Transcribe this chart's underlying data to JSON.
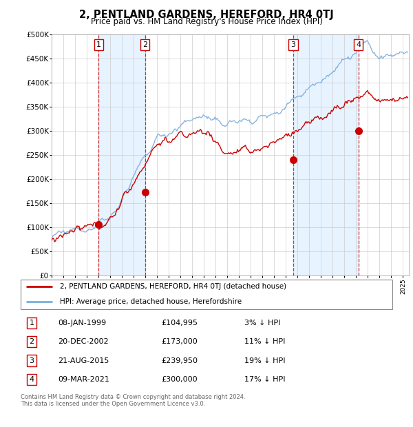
{
  "title": "2, PENTLAND GARDENS, HEREFORD, HR4 0TJ",
  "subtitle": "Price paid vs. HM Land Registry's House Price Index (HPI)",
  "sale_dates": [
    "1999-01-08",
    "2002-12-20",
    "2015-08-21",
    "2021-03-09"
  ],
  "sale_prices": [
    104995,
    173000,
    239950,
    300000
  ],
  "sale_labels": [
    "1",
    "2",
    "3",
    "4"
  ],
  "legend_house": "2, PENTLAND GARDENS, HEREFORD, HR4 0TJ (detached house)",
  "legend_hpi": "HPI: Average price, detached house, Herefordshire",
  "table_rows": [
    {
      "label": "1",
      "date": "08-JAN-1999",
      "price": "£104,995",
      "pct": "3% ↓ HPI"
    },
    {
      "label": "2",
      "date": "20-DEC-2002",
      "price": "£173,000",
      "pct": "11% ↓ HPI"
    },
    {
      "label": "3",
      "date": "21-AUG-2015",
      "price": "£239,950",
      "pct": "19% ↓ HPI"
    },
    {
      "label": "4",
      "date": "09-MAR-2021",
      "price": "£300,000",
      "pct": "17% ↓ HPI"
    }
  ],
  "footer": "Contains HM Land Registry data © Crown copyright and database right 2024.\nThis data is licensed under the Open Government Licence v3.0.",
  "hpi_color": "#7aadde",
  "price_color": "#cc0000",
  "sale_dot_color": "#cc0000",
  "vline_color": "#cc0000",
  "shade_color": "#ddeeff",
  "grid_color": "#cccccc",
  "ylim": [
    0,
    500000
  ],
  "yticks": [
    0,
    50000,
    100000,
    150000,
    200000,
    250000,
    300000,
    350000,
    400000,
    450000,
    500000
  ],
  "xmin": 1995.0,
  "xmax": 2025.5
}
